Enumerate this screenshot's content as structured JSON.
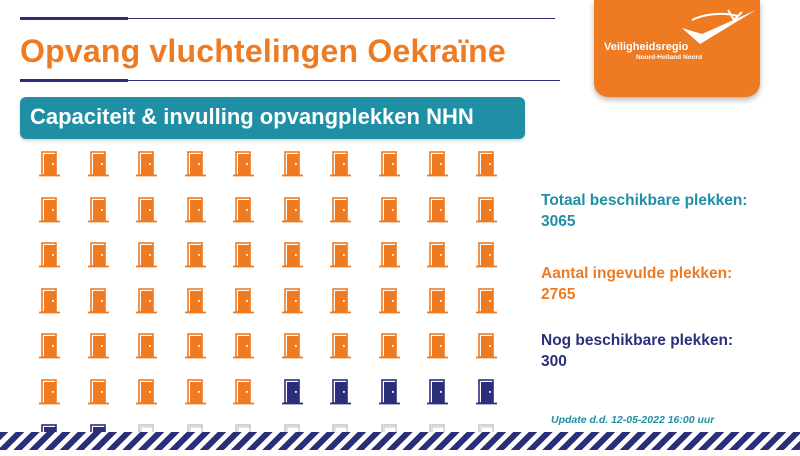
{
  "title": "Opvang vluchtelingen Oekraïne",
  "subtitle": "Capaciteit & invulling opvangplekken NHN",
  "logo": {
    "name": "Veiligheidsregio",
    "sub": "Noord-Holland Noord",
    "icon": "check-swoosh-logo"
  },
  "stats": {
    "total_label": "Totaal beschikbare plekken:",
    "total_value": "3065",
    "filled_label": "Aantal ingevulde plekken:",
    "filled_value": "2765",
    "free_label": "Nog beschikbare plekken:",
    "free_value": "300"
  },
  "update": "Update d.d. 12-05-2022 16:00 uur",
  "door_grid": {
    "icon": "door-icon",
    "rows": 7,
    "columns": 10,
    "states": [
      "filled",
      "filled",
      "filled",
      "filled",
      "filled",
      "filled",
      "filled",
      "filled",
      "filled",
      "filled",
      "filled",
      "filled",
      "filled",
      "filled",
      "filled",
      "filled",
      "filled",
      "filled",
      "filled",
      "filled",
      "filled",
      "filled",
      "filled",
      "filled",
      "filled",
      "filled",
      "filled",
      "filled",
      "filled",
      "filled",
      "filled",
      "filled",
      "filled",
      "filled",
      "filled",
      "filled",
      "filled",
      "filled",
      "filled",
      "filled",
      "filled",
      "filled",
      "filled",
      "filled",
      "filled",
      "filled",
      "filled",
      "filled",
      "filled",
      "filled",
      "filled",
      "filled",
      "filled",
      "filled",
      "filled",
      "available",
      "available",
      "available",
      "available",
      "available",
      "available",
      "available",
      "unused",
      "unused",
      "unused",
      "unused",
      "unused",
      "unused",
      "unused",
      "unused"
    ]
  },
  "colors": {
    "filled": "#ee7a22",
    "available": "#2b2f7a",
    "unused": "#c8c8c8",
    "accent_teal": "#1f8fa6",
    "navy": "#2b2f7a"
  }
}
